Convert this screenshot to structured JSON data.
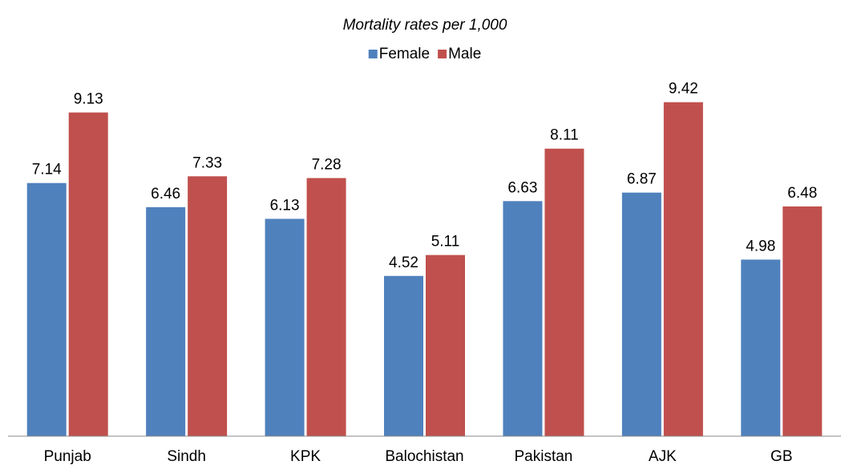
{
  "chart_data": {
    "type": "bar",
    "title": "Mortality rates per 1,000",
    "categories": [
      "Punjab",
      "Sindh",
      "KPK",
      "Balochistan",
      "Pakistan",
      "AJK",
      "GB"
    ],
    "series": [
      {
        "name": "Female",
        "color": "#4f81bd",
        "values": [
          7.14,
          6.46,
          6.13,
          4.52,
          6.63,
          6.87,
          4.98
        ]
      },
      {
        "name": "Male",
        "color": "#c0504d",
        "values": [
          9.13,
          7.33,
          7.28,
          5.11,
          8.11,
          9.42,
          6.48
        ]
      }
    ],
    "ylim": [
      0,
      10
    ],
    "legend": "top"
  }
}
